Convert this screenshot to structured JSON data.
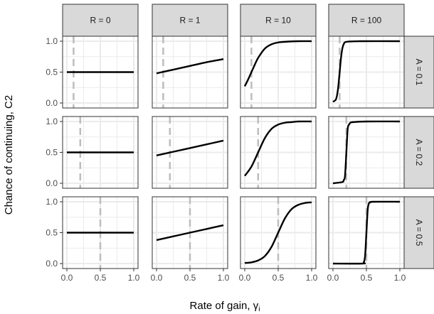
{
  "chart_data": {
    "type": "line",
    "title": "",
    "xlabel": "Rate of gain, γ",
    "xlabel_subscript": "i",
    "ylabel": "Chance of continuing, C2",
    "xlim": [
      0,
      1
    ],
    "ylim": [
      0,
      1
    ],
    "x_ticks": [
      "0.0",
      "0.5",
      "1.0"
    ],
    "y_ticks": [
      "0.0",
      "0.5",
      "1.0"
    ],
    "grid": true,
    "facet_columns": [
      "R = 0",
      "R = 1",
      "R = 10",
      "R = 100"
    ],
    "facet_rows": [
      "A = 0.1",
      "A = 0.2",
      "A = 0.5"
    ],
    "colors": {
      "line": "#000000",
      "reference_line": "#bdbdbd",
      "strip_fill": "#d9d9d9",
      "panel_border": "#333333",
      "grid": "#ebebeb"
    },
    "panels": [
      {
        "row": "A = 0.1",
        "col": "R = 0",
        "ref_x": 0.1,
        "x": [
          0,
          1
        ],
        "y": [
          0.5,
          0.5
        ]
      },
      {
        "row": "A = 0.1",
        "col": "R = 1",
        "ref_x": 0.1,
        "x": [
          0,
          0.25,
          0.5,
          0.75,
          1
        ],
        "y": [
          0.48,
          0.54,
          0.6,
          0.66,
          0.71
        ]
      },
      {
        "row": "A = 0.1",
        "col": "R = 10",
        "ref_x": 0.1,
        "x": [
          0,
          0.05,
          0.1,
          0.15,
          0.2,
          0.3,
          0.4,
          0.5,
          0.6,
          0.8,
          1
        ],
        "y": [
          0.27,
          0.38,
          0.5,
          0.62,
          0.73,
          0.88,
          0.95,
          0.98,
          0.99,
          1.0,
          1.0
        ]
      },
      {
        "row": "A = 0.1",
        "col": "R = 100",
        "ref_x": 0.1,
        "x": [
          0,
          0.04,
          0.06,
          0.08,
          0.1,
          0.12,
          0.14,
          0.16,
          0.2,
          0.4,
          1
        ],
        "y": [
          0.02,
          0.05,
          0.12,
          0.27,
          0.5,
          0.73,
          0.88,
          0.95,
          0.99,
          1.0,
          1.0
        ]
      },
      {
        "row": "A = 0.2",
        "col": "R = 0",
        "ref_x": 0.2,
        "x": [
          0,
          1
        ],
        "y": [
          0.5,
          0.5
        ]
      },
      {
        "row": "A = 0.2",
        "col": "R = 1",
        "ref_x": 0.2,
        "x": [
          0,
          0.25,
          0.5,
          0.75,
          1
        ],
        "y": [
          0.45,
          0.51,
          0.57,
          0.63,
          0.69
        ]
      },
      {
        "row": "A = 0.2",
        "col": "R = 10",
        "ref_x": 0.2,
        "x": [
          0,
          0.1,
          0.2,
          0.3,
          0.4,
          0.5,
          0.6,
          0.7,
          0.8,
          1
        ],
        "y": [
          0.12,
          0.27,
          0.5,
          0.73,
          0.88,
          0.95,
          0.98,
          0.99,
          1.0,
          1.0
        ]
      },
      {
        "row": "A = 0.2",
        "col": "R = 100",
        "ref_x": 0.2,
        "x": [
          0,
          0.14,
          0.16,
          0.18,
          0.2,
          0.22,
          0.24,
          0.26,
          0.3,
          0.5,
          1
        ],
        "y": [
          0.0,
          0.02,
          0.05,
          0.12,
          0.5,
          0.88,
          0.95,
          0.98,
          0.99,
          1.0,
          1.0
        ]
      },
      {
        "row": "A = 0.5",
        "col": "R = 0",
        "ref_x": 0.5,
        "x": [
          0,
          1
        ],
        "y": [
          0.5,
          0.5
        ]
      },
      {
        "row": "A = 0.5",
        "col": "R = 1",
        "ref_x": 0.5,
        "x": [
          0,
          0.25,
          0.5,
          0.75,
          1
        ],
        "y": [
          0.38,
          0.44,
          0.5,
          0.56,
          0.62
        ]
      },
      {
        "row": "A = 0.5",
        "col": "R = 10",
        "ref_x": 0.5,
        "x": [
          0,
          0.1,
          0.2,
          0.3,
          0.4,
          0.5,
          0.6,
          0.7,
          0.8,
          0.9,
          1
        ],
        "y": [
          0.01,
          0.02,
          0.05,
          0.12,
          0.27,
          0.5,
          0.73,
          0.88,
          0.95,
          0.98,
          0.99
        ]
      },
      {
        "row": "A = 0.5",
        "col": "R = 100",
        "ref_x": 0.5,
        "x": [
          0,
          0.44,
          0.46,
          0.48,
          0.5,
          0.52,
          0.54,
          0.56,
          0.6,
          1
        ],
        "y": [
          0.0,
          0.0,
          0.02,
          0.12,
          0.5,
          0.88,
          0.98,
          0.99,
          1.0,
          1.0
        ]
      }
    ]
  }
}
